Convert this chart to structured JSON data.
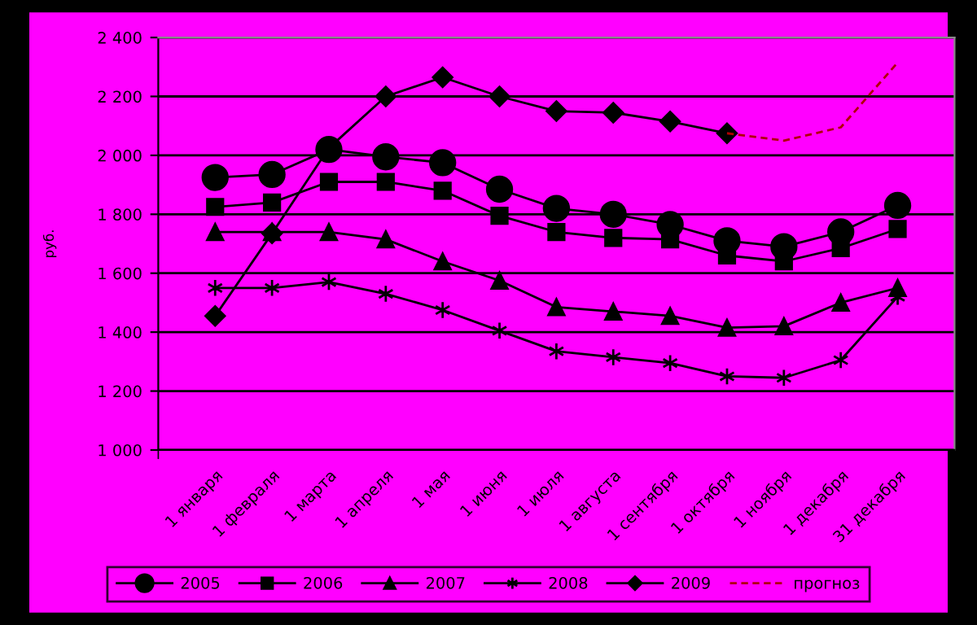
{
  "chart_data": {
    "type": "line",
    "ylabel": "руб.",
    "categories": [
      "1 января",
      "1 февраля",
      "1 марта",
      "1 апреля",
      "1 мая",
      "1 июня",
      "1 июля",
      "1 августа",
      "1 сентября",
      "1 октября",
      "1 ноября",
      "1 декабря",
      "31 декабря"
    ],
    "series": [
      {
        "name": "2005",
        "color": "#000000",
        "marker": "circle",
        "values": [
          1925,
          1935,
          2020,
          1995,
          1975,
          1885,
          1820,
          1800,
          1765,
          1710,
          1690,
          1740,
          1830
        ]
      },
      {
        "name": "2006",
        "color": "#000000",
        "marker": "square",
        "values": [
          1825,
          1840,
          1910,
          1910,
          1880,
          1795,
          1740,
          1720,
          1715,
          1660,
          1640,
          1685,
          1750
        ]
      },
      {
        "name": "2007",
        "color": "#000000",
        "marker": "triangle",
        "values": [
          1740,
          1740,
          1740,
          1715,
          1640,
          1575,
          1485,
          1470,
          1455,
          1415,
          1420,
          1500,
          1550
        ]
      },
      {
        "name": "2008",
        "color": "#000000",
        "marker": "cross",
        "values": [
          1550,
          1550,
          1570,
          1530,
          1475,
          1405,
          1335,
          1315,
          1295,
          1250,
          1245,
          1305,
          1520
        ]
      },
      {
        "name": "2009",
        "color": "#000000",
        "marker": "diamond",
        "values": [
          1455,
          1735,
          2025,
          2200,
          2265,
          2200,
          2150,
          2145,
          2115,
          2075,
          null,
          null,
          null
        ]
      },
      {
        "name": "прогноз",
        "color": "#b00000",
        "marker": "none",
        "line_style": "dashed",
        "values": [
          null,
          null,
          null,
          null,
          null,
          null,
          null,
          null,
          null,
          2075,
          2050,
          2095,
          2315
        ]
      }
    ],
    "ylim": [
      1000,
      2400
    ],
    "yticks": [
      {
        "value": 1000,
        "label": "1 000"
      },
      {
        "value": 1200,
        "label": "1 200"
      },
      {
        "value": 1400,
        "label": "1 400"
      },
      {
        "value": 1600,
        "label": "1 600"
      },
      {
        "value": 1800,
        "label": "1 800"
      },
      {
        "value": 2000,
        "label": "2 000"
      },
      {
        "value": 2200,
        "label": "2 200"
      },
      {
        "value": 2400,
        "label": "2 400"
      }
    ],
    "grid": "y",
    "legend": "bottom"
  }
}
